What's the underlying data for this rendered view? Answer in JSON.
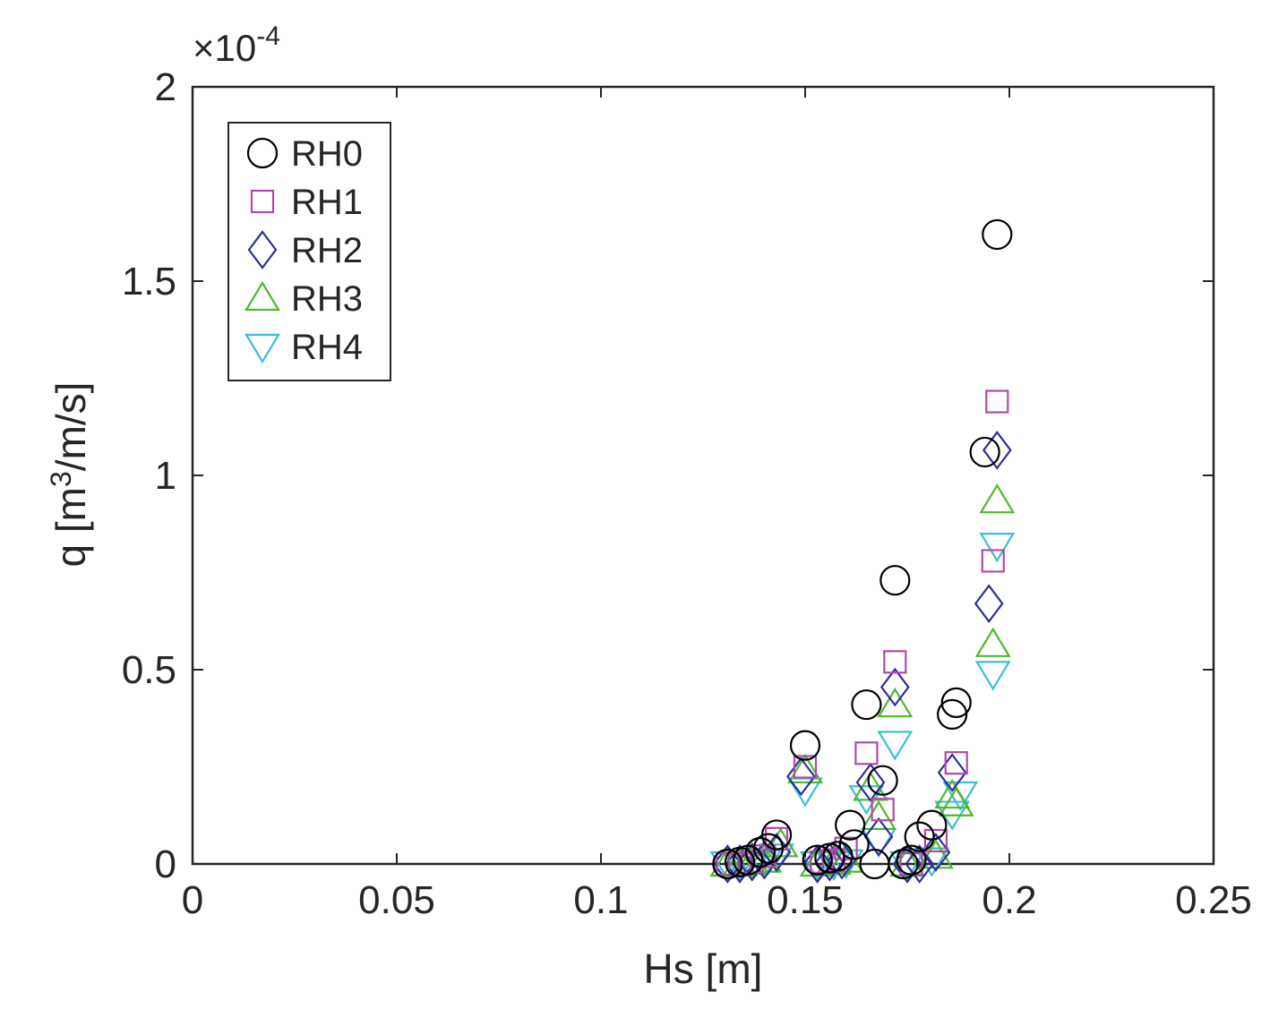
{
  "chart_data": {
    "type": "scatter",
    "xlabel": "Hs [m]",
    "ylabel_main": "q  [m",
    "ylabel_sup": "3",
    "ylabel_tail": "/m/s]",
    "y_multiplier_prefix": "×10",
    "y_multiplier_exp": "-4",
    "xlim": [
      0,
      0.25
    ],
    "ylim": [
      0,
      2
    ],
    "xticks": [
      0,
      0.05,
      0.1,
      0.15,
      0.2,
      0.25
    ],
    "xtick_labels": [
      "0",
      "0.05",
      "0.1",
      "0.15",
      "0.2",
      "0.25"
    ],
    "yticks": [
      0,
      0.5,
      1,
      1.5,
      2
    ],
    "ytick_labels": [
      "0",
      "0.5",
      "1",
      "1.5",
      "2"
    ],
    "legend_position": "top-left",
    "grid": false,
    "series": [
      {
        "name": "RH0",
        "marker": "circle",
        "color": "#000000",
        "points": [
          [
            0.131,
            0.0
          ],
          [
            0.134,
            0.005
          ],
          [
            0.136,
            0.01
          ],
          [
            0.139,
            0.03
          ],
          [
            0.141,
            0.04
          ],
          [
            0.143,
            0.075
          ],
          [
            0.15,
            0.305
          ],
          [
            0.153,
            0.01
          ],
          [
            0.156,
            0.015
          ],
          [
            0.158,
            0.02
          ],
          [
            0.161,
            0.1
          ],
          [
            0.162,
            0.05
          ],
          [
            0.165,
            0.41
          ],
          [
            0.167,
            0.0
          ],
          [
            0.169,
            0.215
          ],
          [
            0.172,
            0.73
          ],
          [
            0.174,
            0.0
          ],
          [
            0.176,
            0.01
          ],
          [
            0.178,
            0.07
          ],
          [
            0.181,
            0.1
          ],
          [
            0.186,
            0.385
          ],
          [
            0.187,
            0.415
          ],
          [
            0.194,
            1.06
          ],
          [
            0.197,
            1.62
          ]
        ]
      },
      {
        "name": "RH1",
        "marker": "square",
        "color": "#b04aa8",
        "points": [
          [
            0.131,
            0.0
          ],
          [
            0.134,
            0.0
          ],
          [
            0.137,
            0.005
          ],
          [
            0.14,
            0.02
          ],
          [
            0.143,
            0.065
          ],
          [
            0.15,
            0.25
          ],
          [
            0.154,
            0.005
          ],
          [
            0.157,
            0.01
          ],
          [
            0.16,
            0.04
          ],
          [
            0.165,
            0.285
          ],
          [
            0.169,
            0.14
          ],
          [
            0.172,
            0.52
          ],
          [
            0.176,
            0.0
          ],
          [
            0.182,
            0.06
          ],
          [
            0.187,
            0.26
          ],
          [
            0.196,
            0.78
          ],
          [
            0.197,
            1.19
          ]
        ]
      },
      {
        "name": "RH2",
        "marker": "diamond",
        "color": "#2e2e9e",
        "points": [
          [
            0.131,
            0.0
          ],
          [
            0.134,
            0.0
          ],
          [
            0.137,
            0.005
          ],
          [
            0.14,
            0.01
          ],
          [
            0.143,
            0.03
          ],
          [
            0.149,
            0.225
          ],
          [
            0.153,
            0.0
          ],
          [
            0.156,
            0.005
          ],
          [
            0.159,
            0.01
          ],
          [
            0.166,
            0.21
          ],
          [
            0.168,
            0.07
          ],
          [
            0.172,
            0.455
          ],
          [
            0.175,
            0.0
          ],
          [
            0.178,
            0.0
          ],
          [
            0.182,
            0.03
          ],
          [
            0.186,
            0.235
          ],
          [
            0.195,
            0.67
          ],
          [
            0.197,
            1.065
          ]
        ]
      },
      {
        "name": "RH3",
        "marker": "triangle-up",
        "color": "#4fb82e",
        "points": [
          [
            0.131,
            0.0
          ],
          [
            0.134,
            0.0
          ],
          [
            0.137,
            0.005
          ],
          [
            0.14,
            0.01
          ],
          [
            0.144,
            0.05
          ],
          [
            0.15,
            0.24
          ],
          [
            0.153,
            0.0
          ],
          [
            0.157,
            0.005
          ],
          [
            0.16,
            0.01
          ],
          [
            0.166,
            0.195
          ],
          [
            0.168,
            0.12
          ],
          [
            0.172,
            0.41
          ],
          [
            0.175,
            0.0
          ],
          [
            0.182,
            0.02
          ],
          [
            0.186,
            0.175
          ],
          [
            0.187,
            0.155
          ],
          [
            0.196,
            0.565
          ],
          [
            0.197,
            0.935
          ]
        ]
      },
      {
        "name": "RH4",
        "marker": "triangle-down",
        "color": "#3fbcd6",
        "points": [
          [
            0.131,
            0.0
          ],
          [
            0.134,
            0.0
          ],
          [
            0.137,
            0.0
          ],
          [
            0.14,
            0.005
          ],
          [
            0.143,
            0.02
          ],
          [
            0.15,
            0.19
          ],
          [
            0.153,
            0.0
          ],
          [
            0.157,
            0.0
          ],
          [
            0.16,
            0.005
          ],
          [
            0.165,
            0.17
          ],
          [
            0.168,
            0.06
          ],
          [
            0.172,
            0.31
          ],
          [
            0.175,
            0.0
          ],
          [
            0.181,
            0.01
          ],
          [
            0.186,
            0.13
          ],
          [
            0.188,
            0.18
          ],
          [
            0.196,
            0.49
          ],
          [
            0.197,
            0.82
          ]
        ]
      }
    ]
  }
}
